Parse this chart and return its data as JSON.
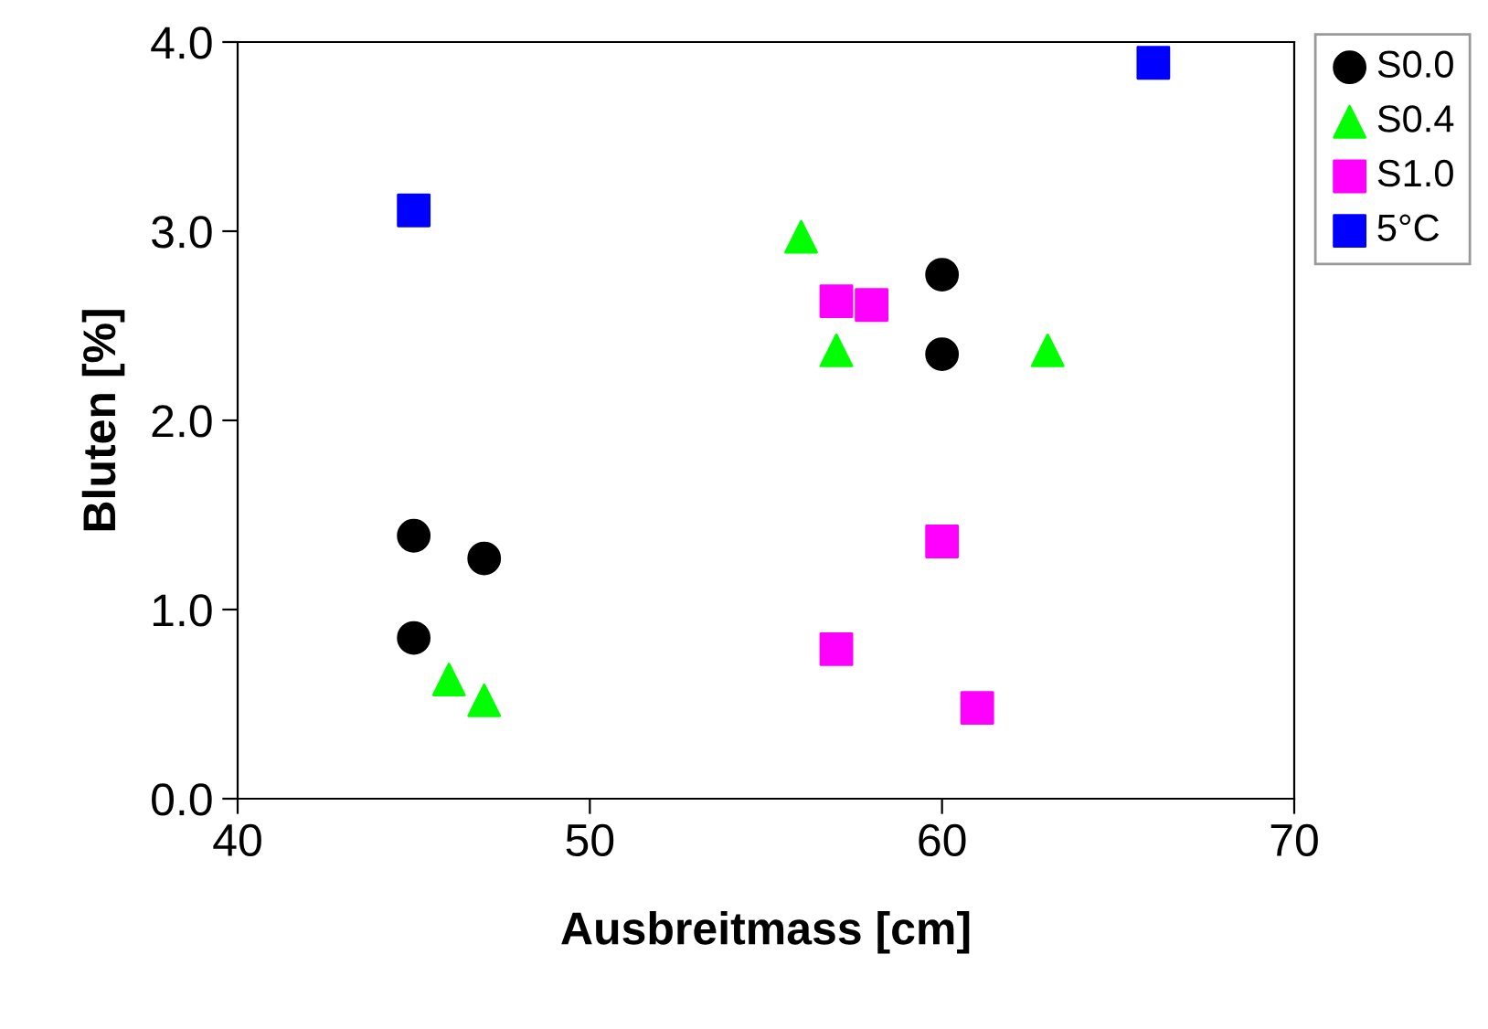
{
  "chart_data": {
    "type": "scatter",
    "xlabel": "Ausbreitmass [cm]",
    "ylabel": "Bluten [%]",
    "xlim": [
      40,
      70
    ],
    "xticks": [
      40,
      50,
      60,
      70
    ],
    "ylim": [
      0,
      4
    ],
    "yticks": [
      {
        "value": 0,
        "label": "0.0"
      },
      {
        "value": 1,
        "label": "1.0"
      },
      {
        "value": 2,
        "label": "2.0"
      },
      {
        "value": 3,
        "label": "3.0"
      },
      {
        "value": 4,
        "label": "4.0"
      }
    ],
    "grid": false,
    "legend": "top right",
    "series": [
      {
        "name": "S0.0",
        "color": "#000000",
        "marker": "circle",
        "x": [
          45,
          47,
          45,
          60,
          60
        ],
        "values": [
          1.39,
          1.27,
          0.85,
          2.77,
          2.35
        ]
      },
      {
        "name": "S0.4",
        "color": "#00ff00",
        "marker": "triangle",
        "x": [
          56,
          57,
          63,
          46,
          47
        ],
        "values": [
          2.97,
          2.37,
          2.37,
          0.63,
          0.52
        ]
      },
      {
        "name": "S1.0",
        "color": "#ff00ff",
        "marker": "square",
        "x": [
          57,
          58,
          60,
          57,
          61
        ],
        "values": [
          2.63,
          2.61,
          1.36,
          0.79,
          0.48
        ]
      },
      {
        "name": "5°C",
        "color": "#0000ff",
        "marker": "square",
        "x": [
          45,
          66
        ],
        "values": [
          3.11,
          3.89
        ]
      }
    ]
  }
}
